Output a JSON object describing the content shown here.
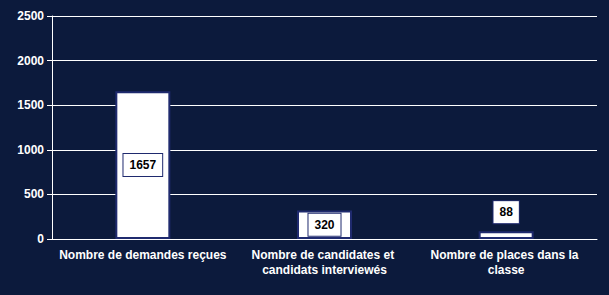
{
  "chart_data": {
    "type": "bar",
    "categories": [
      "Nombre de demandes reçues",
      "Nombre de candidates et candidats interviewés",
      "Nombre de places dans la classe"
    ],
    "values": [
      1657,
      320,
      88
    ],
    "color": "#ffffff",
    "ylim": [
      0,
      2500
    ],
    "yticks": [
      0,
      500,
      1000,
      1500,
      2000,
      2500
    ],
    "grid": true,
    "data_labels": true
  }
}
